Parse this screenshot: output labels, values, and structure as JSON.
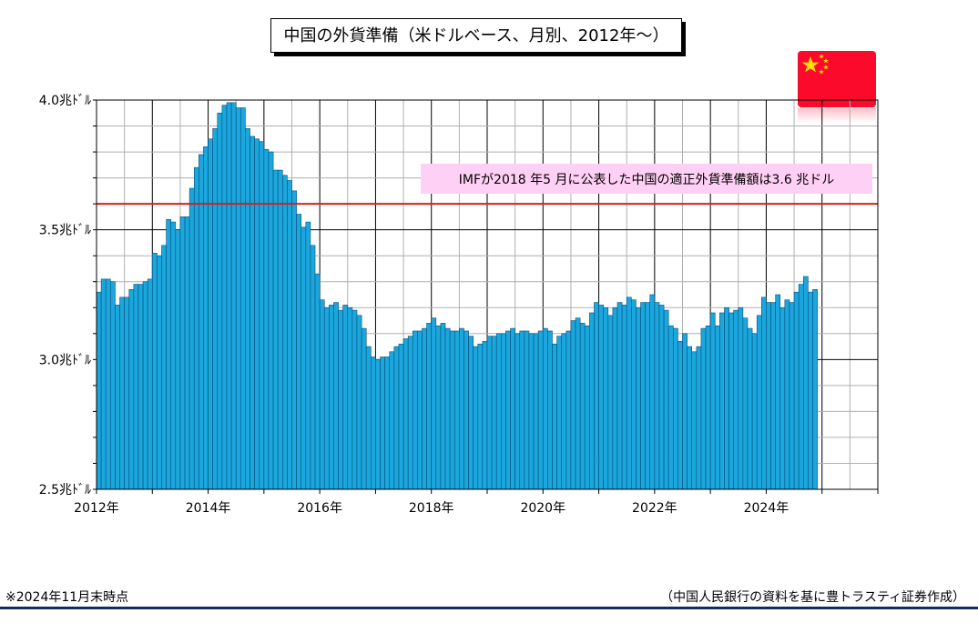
{
  "title": "中国の外貨準備（米ドルベース、月別、2012年～）",
  "footnote": "※2024年11月末時点",
  "source": "（中国人民銀行の資料を基に豊トラスティ証券作成）",
  "colors": {
    "bar": "#1aa7dd",
    "bar_edge": "#0a4f7a",
    "reference_line": "#d91e1e",
    "annotation_bg": "#ffd0f5",
    "flag": "#fc0a2c",
    "flag_star": "#ffde00"
  },
  "chart_data": {
    "type": "bar",
    "y_tick_labels": [
      "4.0兆ﾄﾞﾙ",
      "3.5兆ﾄﾞﾙ",
      "3.0兆ﾄﾞﾙ",
      "2.5兆ﾄﾞﾙ"
    ],
    "y_ticks": [
      4.0,
      3.5,
      3.0,
      2.5
    ],
    "x_tick_labels": [
      "2012年",
      "2014年",
      "2016年",
      "2018年",
      "2020年",
      "2022年",
      "2024年"
    ],
    "x_ticks": [
      "2012-01",
      "2014-01",
      "2016-01",
      "2018-01",
      "2020-01",
      "2022-01",
      "2024-01"
    ],
    "ylim": [
      2.5,
      4.0
    ],
    "xlim": [
      "2012-01",
      "2026-01"
    ],
    "grid": true,
    "start_month": "2012-01",
    "end_month": "2024-11",
    "values": [
      3.26,
      3.31,
      3.31,
      3.3,
      3.21,
      3.24,
      3.24,
      3.27,
      3.29,
      3.29,
      3.3,
      3.31,
      3.41,
      3.4,
      3.44,
      3.54,
      3.53,
      3.5,
      3.55,
      3.55,
      3.66,
      3.74,
      3.79,
      3.82,
      3.85,
      3.89,
      3.95,
      3.98,
      3.99,
      3.99,
      3.97,
      3.97,
      3.89,
      3.86,
      3.85,
      3.84,
      3.81,
      3.8,
      3.73,
      3.73,
      3.71,
      3.69,
      3.65,
      3.56,
      3.51,
      3.53,
      3.44,
      3.33,
      3.23,
      3.2,
      3.21,
      3.22,
      3.19,
      3.21,
      3.2,
      3.19,
      3.17,
      3.12,
      3.05,
      3.01,
      3.0,
      3.01,
      3.01,
      3.03,
      3.05,
      3.06,
      3.08,
      3.09,
      3.11,
      3.11,
      3.12,
      3.14,
      3.16,
      3.13,
      3.14,
      3.12,
      3.11,
      3.11,
      3.12,
      3.11,
      3.09,
      3.05,
      3.06,
      3.07,
      3.09,
      3.09,
      3.1,
      3.1,
      3.11,
      3.12,
      3.1,
      3.11,
      3.11,
      3.1,
      3.1,
      3.11,
      3.12,
      3.11,
      3.06,
      3.09,
      3.1,
      3.11,
      3.15,
      3.16,
      3.14,
      3.13,
      3.18,
      3.22,
      3.21,
      3.2,
      3.17,
      3.2,
      3.22,
      3.21,
      3.24,
      3.23,
      3.2,
      3.22,
      3.22,
      3.25,
      3.22,
      3.21,
      3.19,
      3.13,
      3.12,
      3.07,
      3.1,
      3.05,
      3.03,
      3.05,
      3.12,
      3.13,
      3.18,
      3.13,
      3.18,
      3.2,
      3.18,
      3.19,
      3.2,
      3.16,
      3.12,
      3.1,
      3.17,
      3.24,
      3.22,
      3.22,
      3.25,
      3.2,
      3.23,
      3.22,
      3.26,
      3.29,
      3.32,
      3.26,
      3.27
    ],
    "reference_line": {
      "value": 3.6,
      "label": "IMFが2018 年5 月に公表した中国の適正外貨準備額は3.6 兆ドル"
    }
  }
}
